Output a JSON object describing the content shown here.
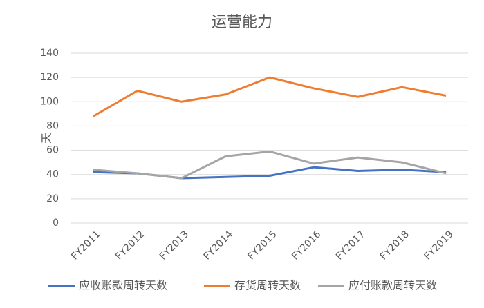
{
  "chart_data": {
    "type": "line",
    "title": "运营能力",
    "y_label": "天",
    "categories": [
      "FY2011",
      "FY2012",
      "FY2013",
      "FY2014",
      "FY2015",
      "FY2016",
      "FY2017",
      "FY2018",
      "FY2019"
    ],
    "series": [
      {
        "name": "应收账款周转天数",
        "color": "#4472c4",
        "values": [
          42,
          41,
          37,
          38,
          39,
          46,
          43,
          44,
          42
        ]
      },
      {
        "name": "存货周转天数",
        "color": "#ed7d31",
        "values": [
          88,
          109,
          100,
          106,
          120,
          111,
          104,
          112,
          105
        ]
      },
      {
        "name": "应付账款周转天数",
        "color": "#a5a5a5",
        "values": [
          44,
          41,
          37,
          55,
          59,
          49,
          54,
          50,
          41
        ]
      }
    ],
    "ylim": [
      0,
      140
    ],
    "yticks": [
      0,
      20,
      40,
      60,
      80,
      100,
      120,
      140
    ],
    "grid": true,
    "legend": "bottom"
  }
}
